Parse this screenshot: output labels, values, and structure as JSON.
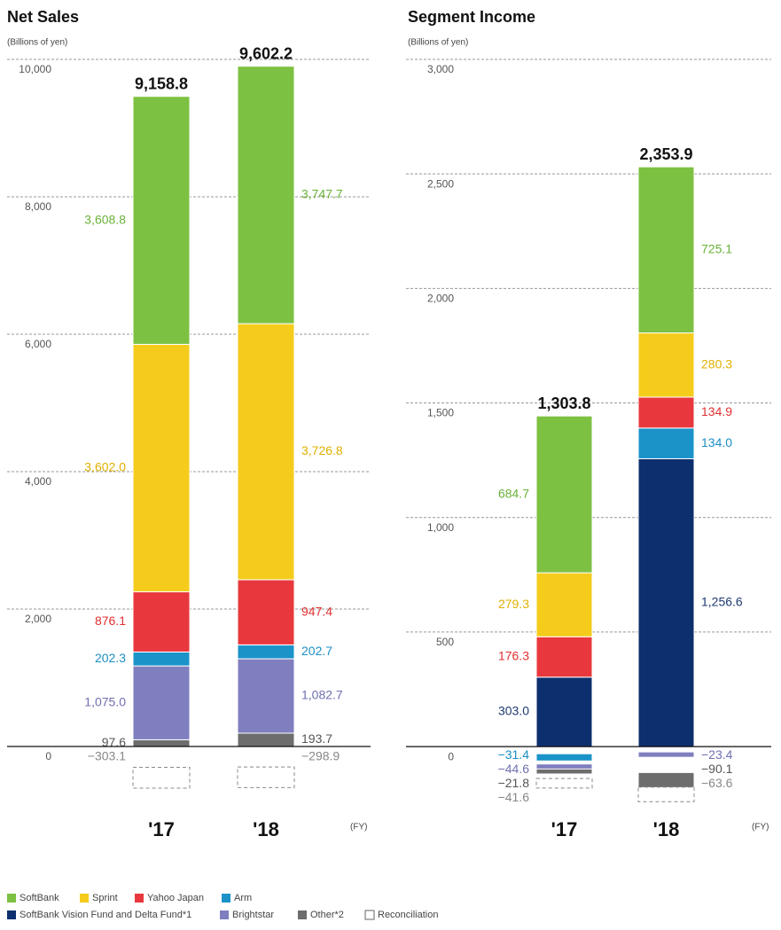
{
  "chart_data": [
    {
      "type": "bar",
      "stacked": true,
      "title": "Net Sales",
      "y_label": "(Billions of yen)",
      "x_unit": "(FY)",
      "categories": [
        "'17",
        "'18"
      ],
      "series": [
        {
          "name": "SoftBank",
          "color": "#7dc142",
          "label_color": "#6ab23a",
          "values": [
            3608.8,
            3747.7
          ],
          "value_labels": [
            "3,608.8",
            "3,747.7"
          ]
        },
        {
          "name": "Sprint",
          "color": "#f5cc1c",
          "label_color": "#e0b000",
          "values": [
            3602.0,
            3726.8
          ],
          "value_labels": [
            "3,602.0",
            "3,726.8"
          ]
        },
        {
          "name": "Yahoo Japan",
          "color": "#e8383d",
          "label_color": "#e03030",
          "values": [
            876.1,
            947.4
          ],
          "value_labels": [
            "876.1",
            "947.4"
          ]
        },
        {
          "name": "Arm",
          "color": "#1b93c9",
          "label_color": "#1b8ec4",
          "values": [
            202.3,
            202.7
          ],
          "value_labels": [
            "202.3",
            "202.7"
          ]
        },
        {
          "name": "SoftBank Vision Fund and Delta Fund*1",
          "color": "#0e2f6e",
          "label_color": "#1f3a70",
          "values": [
            null,
            null
          ],
          "value_labels": [
            null,
            null
          ]
        },
        {
          "name": "Brightstar",
          "color": "#7f7fbf",
          "label_color": "#7070b0",
          "values": [
            1075.0,
            1082.7
          ],
          "value_labels": [
            "1,075.0",
            "1,082.7"
          ]
        },
        {
          "name": "Other*2",
          "color": "#6d6d6d",
          "label_color": "#555555",
          "values": [
            97.6,
            193.7
          ],
          "value_labels": [
            "97.6",
            "193.7"
          ]
        },
        {
          "name": "Reconciliation",
          "color": "#ffffff",
          "border": "dashed",
          "label_color": "#888888",
          "values": [
            -303.1,
            -298.9
          ],
          "value_labels": [
            "−303.1",
            "−298.9"
          ]
        }
      ],
      "totals": [
        9158.8,
        9602.2
      ],
      "total_labels": [
        "9,158.8",
        "9,602.2"
      ],
      "ylim": [
        -600,
        10000
      ],
      "yticks": [
        0,
        {
          "value": 2000,
          "label": "2,000"
        },
        {
          "value": 4000,
          "label": "4,000"
        },
        {
          "value": 6000,
          "label": "6,000"
        },
        {
          "value": 8000,
          "label": "8,000"
        },
        {
          "value": 10000,
          "label": "10,000"
        }
      ],
      "grid": true
    },
    {
      "type": "bar",
      "stacked": true,
      "title": "Segment Income",
      "y_label": "(Billions of yen)",
      "x_unit": "(FY)",
      "categories": [
        "'17",
        "'18"
      ],
      "series": [
        {
          "name": "SoftBank",
          "color": "#7dc142",
          "label_color": "#6ab23a",
          "values": [
            684.7,
            725.1
          ],
          "value_labels": [
            "684.7",
            "725.1"
          ]
        },
        {
          "name": "Sprint",
          "color": "#f5cc1c",
          "label_color": "#e0b000",
          "values": [
            279.3,
            280.3
          ],
          "value_labels": [
            "279.3",
            "280.3"
          ]
        },
        {
          "name": "Yahoo Japan",
          "color": "#e8383d",
          "label_color": "#e03030",
          "values": [
            176.3,
            134.9
          ],
          "value_labels": [
            "176.3",
            "134.9"
          ]
        },
        {
          "name": "Arm",
          "color": "#1b93c9",
          "label_color": "#1b8ec4",
          "values": [
            -31.4,
            134.0
          ],
          "value_labels": [
            "−31.4",
            "134.0"
          ]
        },
        {
          "name": "SoftBank Vision Fund and Delta Fund*1",
          "color": "#0e2f6e",
          "label_color": "#1f3a70",
          "values": [
            303.0,
            1256.6
          ],
          "value_labels": [
            "303.0",
            "1,256.6"
          ]
        },
        {
          "name": "Brightstar",
          "color": "#7f7fbf",
          "label_color": "#7070b0",
          "values": [
            -44.6,
            -23.4
          ],
          "value_labels": [
            "−44.6",
            "−23.4"
          ]
        },
        {
          "name": "Other*2",
          "color": "#6d6d6d",
          "label_color": "#555555",
          "values": [
            -21.8,
            -90.1
          ],
          "value_labels": [
            "−21.8",
            "−90.1"
          ]
        },
        {
          "name": "Reconciliation",
          "color": "#ffffff",
          "border": "dashed",
          "label_color": "#888888",
          "values": [
            -41.6,
            -63.6
          ],
          "value_labels": [
            "−41.6",
            "−63.6"
          ]
        }
      ],
      "totals": [
        1303.8,
        2353.9
      ],
      "total_labels": [
        "1,303.8",
        "2,353.9"
      ],
      "ylim": [
        -300,
        3000
      ],
      "yticks": [
        0,
        500,
        {
          "value": 1000,
          "label": "1,000"
        },
        {
          "value": 1500,
          "label": "1,500"
        },
        {
          "value": 2000,
          "label": "2,000"
        },
        {
          "value": 2500,
          "label": "2,500"
        },
        {
          "value": 3000,
          "label": "3,000"
        }
      ],
      "grid": true
    }
  ]
}
